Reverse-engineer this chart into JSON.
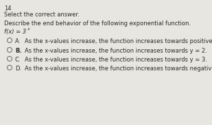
{
  "question_number": "14",
  "instruction": "Select the correct answer.",
  "description": "Describe the end behavior of the following exponential function.",
  "function_main": "f(x) = 3",
  "function_super": "x",
  "options": [
    {
      "label": "A.",
      "text": "As the x-values increase, the function increases towards positive infinity."
    },
    {
      "label": "B.",
      "text": "As the x-values increase, the function increases towards y = 2."
    },
    {
      "label": "C.",
      "text": "As the x-values increase, the function increases towards y = 3."
    },
    {
      "label": "D.",
      "text": "As the x-values increase, the function increases towards negative infinity."
    }
  ],
  "bg_color": "#e8e6e0",
  "text_color": "#2a2a2a",
  "label_bold": [
    "B."
  ],
  "figsize": [
    3.09,
    1.83
  ],
  "dpi": 100
}
